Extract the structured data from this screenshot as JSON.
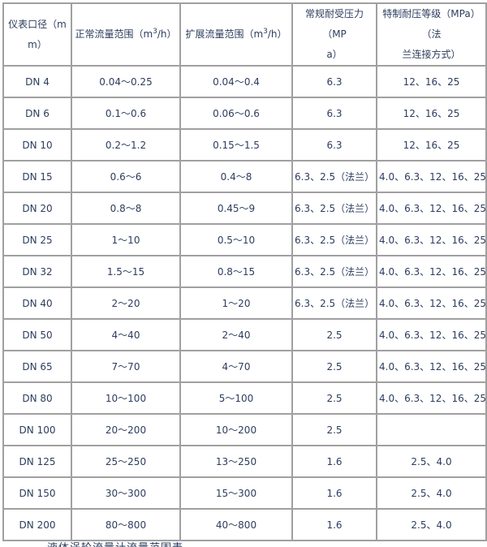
{
  "colors": {
    "background": "#ffffff",
    "table_border": "#a0a0a0",
    "text": "#2d3d5e"
  },
  "table": {
    "columns": [
      {
        "id": "diameter",
        "label": "仪表口径（mm）",
        "lines": [
          "仪表口径（m",
          "m）"
        ]
      },
      {
        "id": "normal_flow",
        "label": "正常流量范围（m3/h）",
        "parts": {
          "pre": "正常流量范围（m",
          "sup": "3",
          "post": "/h）"
        }
      },
      {
        "id": "extended_flow",
        "label": "扩展流量范围（m3/h）",
        "parts": {
          "pre": "扩展流量范围（m",
          "sup": "3",
          "post": "/h）"
        }
      },
      {
        "id": "normal_pressure",
        "label": "常规耐受压力（MPa）",
        "lines": [
          "常规耐受压力（MP",
          "a）"
        ]
      },
      {
        "id": "special_pressure",
        "label": "特制耐压等级（MPa）（法兰连接方式）",
        "lines": [
          "特制耐压等级（MPa）（法",
          "兰连接方式）"
        ]
      }
    ],
    "rows": [
      [
        "DN 4",
        "0.04～0.25",
        "0.04～0.4",
        "6.3",
        "12、16、25"
      ],
      [
        "DN 6",
        "0.1～0.6",
        "0.06～0.6",
        "6.3",
        "12、16、25"
      ],
      [
        "DN 10",
        "0.2～1.2",
        "0.15～1.5",
        "6.3",
        "12、16、25"
      ],
      [
        "DN 15",
        "0.6～6",
        "0.4～8",
        "6.3、2.5（法兰）",
        "4.0、6.3、12、16、25"
      ],
      [
        "DN 20",
        "0.8～8",
        "0.45～9",
        "6.3、2.5（法兰）",
        "4.0、6.3、12、16、25"
      ],
      [
        "DN 25",
        "1～10",
        "0.5～10",
        "6.3、2.5（法兰）",
        "4.0、6.3、12、16、25"
      ],
      [
        "DN 32",
        "1.5～15",
        "0.8～15",
        "6.3、2.5（法兰）",
        "4.0、6.3、12、16、25"
      ],
      [
        "DN 40",
        "2～20",
        "1～20",
        "6.3、2.5（法兰）",
        "4.0、6.3、12、16、25"
      ],
      [
        "DN 50",
        "4～40",
        "2～40",
        "2.5",
        "4.0、6.3、12、16、25"
      ],
      [
        "DN 65",
        "7～70",
        "4～70",
        "2.5",
        "4.0、6.3、12、16、25"
      ],
      [
        "DN 80",
        "10～100",
        "5～100",
        "2.5",
        "4.0、6.3、12、16、25"
      ],
      [
        "DN 100",
        "20～200",
        "10～200",
        "2.5",
        ""
      ],
      [
        "DN 125",
        "25～250",
        "13～250",
        "1.6",
        "2.5、4.0"
      ],
      [
        "DN 150",
        "30～300",
        "15～300",
        "1.6",
        "2.5、4.0"
      ],
      [
        "DN 200",
        "80～800",
        "40～800",
        "1.6",
        "2.5、4.0"
      ]
    ]
  },
  "footer": {
    "clipped_text": "液体涡轮流量计流量范围表"
  }
}
